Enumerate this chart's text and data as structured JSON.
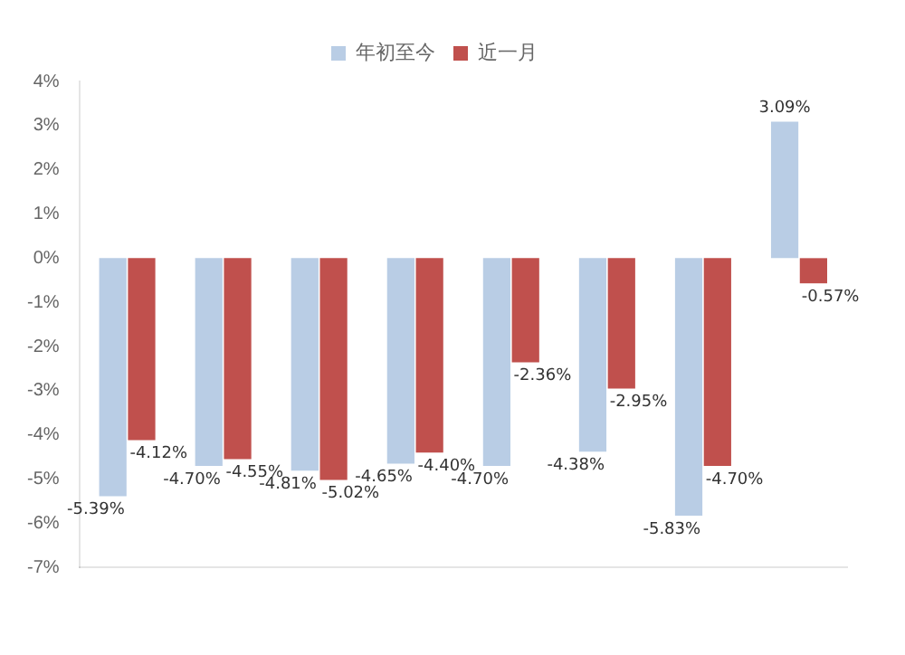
{
  "chart_data": {
    "type": "bar",
    "categories": [
      null,
      null,
      null,
      null,
      null,
      null,
      null,
      null
    ],
    "series": [
      {
        "name": "年初至今",
        "color": "#b9cde5",
        "values": [
          -5.39,
          -4.7,
          -4.81,
          -4.65,
          -4.7,
          -4.38,
          -5.83,
          3.09
        ],
        "value_labels": [
          "-5.39%",
          "-4.70%",
          "-4.81%",
          "-4.65%",
          "-4.70%",
          "-4.38%",
          "-5.83%",
          "3.09%"
        ]
      },
      {
        "name": "近一月",
        "color": "#c0504d",
        "values": [
          -4.12,
          -4.55,
          -5.02,
          -4.4,
          -2.36,
          -2.95,
          -4.7,
          -0.57
        ],
        "value_labels": [
          "-4.12%",
          "-4.55%",
          "-5.02%",
          "-4.40%",
          "-2.36%",
          "-2.95%",
          "-4.70%",
          "-0.57%"
        ]
      }
    ],
    "ylim": [
      -7,
      4
    ],
    "yticks": [
      {
        "value": -7,
        "label": "-7%"
      },
      {
        "value": -6,
        "label": "-6%"
      },
      {
        "value": -5,
        "label": "-5%"
      },
      {
        "value": -4,
        "label": "-4%"
      },
      {
        "value": -3,
        "label": "-3%"
      },
      {
        "value": -2,
        "label": "-2%"
      },
      {
        "value": -1,
        "label": "-1%"
      },
      {
        "value": 0,
        "label": "0%"
      },
      {
        "value": 1,
        "label": "1%"
      },
      {
        "value": 2,
        "label": "2%"
      },
      {
        "value": 3,
        "label": "3%"
      },
      {
        "value": 4,
        "label": "4%"
      }
    ],
    "grid": false,
    "legend": "top"
  }
}
